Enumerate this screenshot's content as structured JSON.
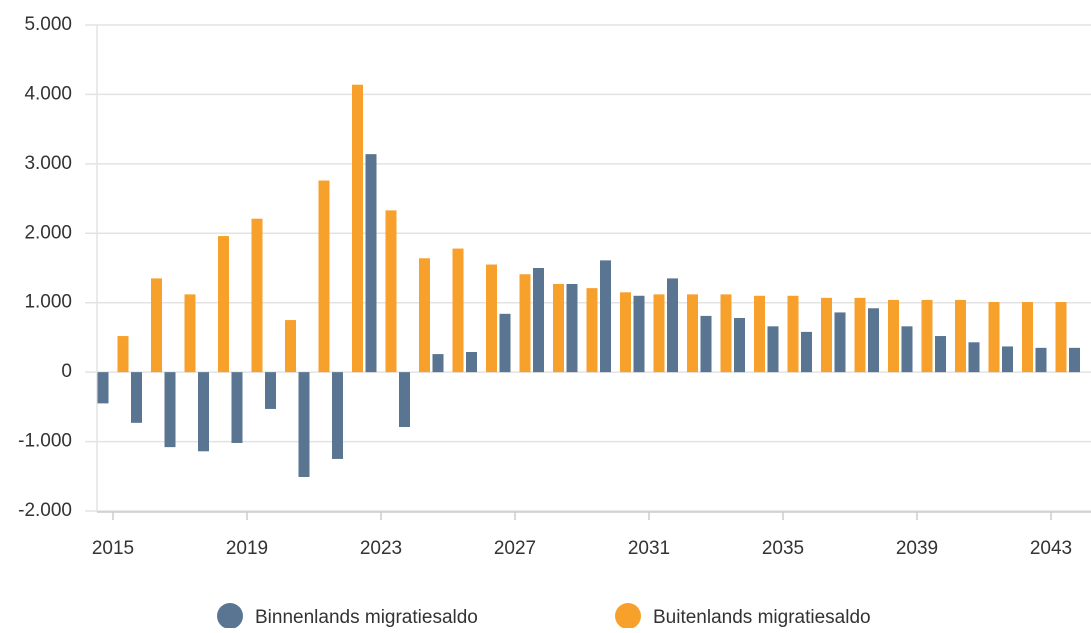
{
  "chart_data": {
    "type": "bar",
    "categories": [
      2015,
      null,
      null,
      null,
      2019,
      null,
      null,
      null,
      2023,
      null,
      null,
      null,
      2027,
      null,
      null,
      null,
      2031,
      null,
      null,
      null,
      2035,
      null,
      null,
      null,
      2039,
      null,
      null,
      null,
      2043,
      null
    ],
    "series": [
      {
        "name": "Binnenlands migratiesaldo",
        "color": "#5a7592",
        "values": [
          -450,
          -730,
          -1080,
          -1140,
          -1020,
          -530,
          -1510,
          -1250,
          3140,
          -790,
          260,
          290,
          840,
          1500,
          1270,
          1610,
          1100,
          1350,
          810,
          780,
          660,
          580,
          860,
          920,
          660,
          520,
          430,
          370,
          350,
          350
        ]
      },
      {
        "name": "Buitenlands migratiesaldo",
        "color": "#f7a02c",
        "values": [
          520,
          1350,
          1120,
          1960,
          2210,
          750,
          2760,
          4140,
          2330,
          1640,
          1780,
          1550,
          1410,
          1270,
          1210,
          1150,
          1120,
          1120,
          1120,
          1100,
          1100,
          1070,
          1070,
          1040,
          1040,
          1040,
          1010,
          1010,
          1010,
          null
        ]
      }
    ],
    "ylim": [
      -2000,
      5000
    ],
    "yticks": [
      {
        "value": -2000,
        "label": "-2.000"
      },
      {
        "value": -1000,
        "label": "-1.000"
      },
      0,
      {
        "value": 1000,
        "label": "1.000"
      },
      {
        "value": 2000,
        "label": "2.000"
      },
      {
        "value": 3000,
        "label": "3.000"
      },
      {
        "value": 4000,
        "label": "4.000"
      },
      {
        "value": 5000,
        "label": "5.000"
      }
    ],
    "grid": true,
    "legend": "bottom"
  }
}
